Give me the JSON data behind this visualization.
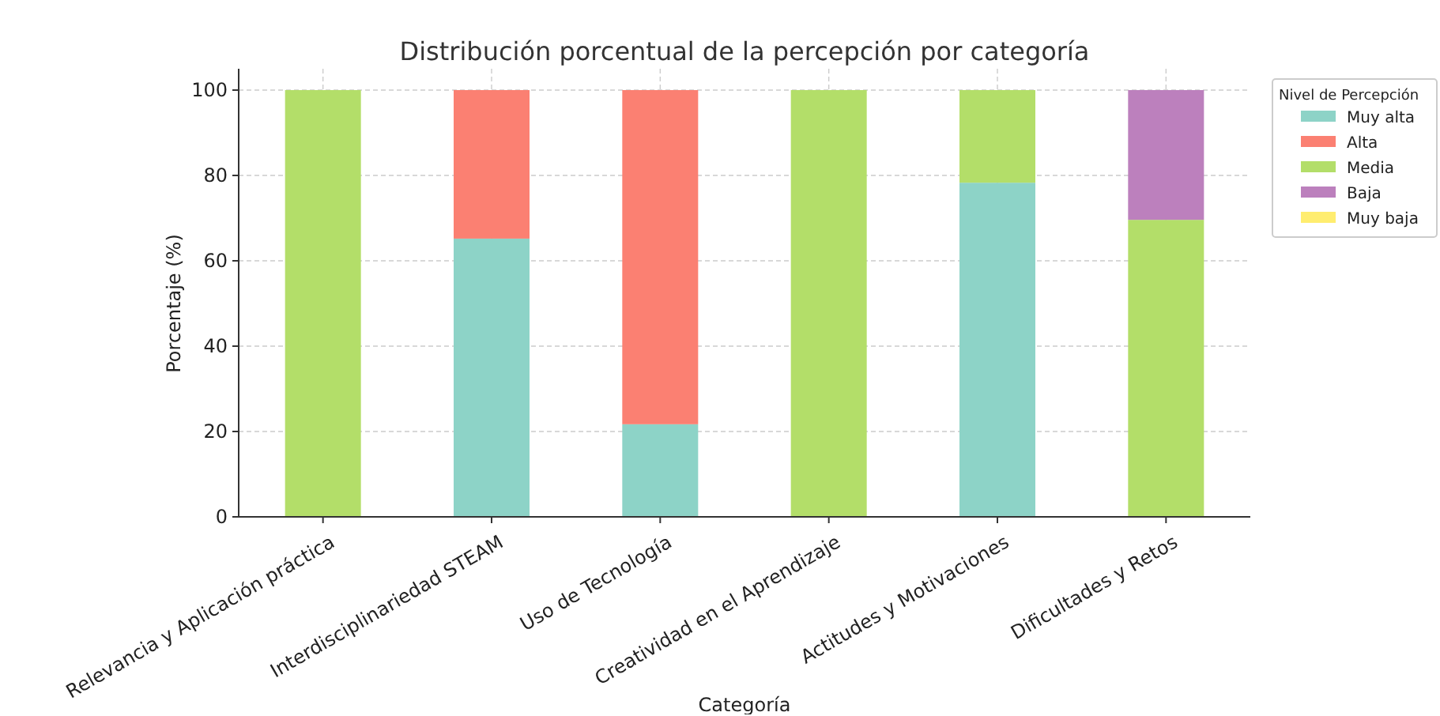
{
  "chart_data": {
    "type": "bar",
    "title": "Distribución porcentual de la percepción por categoría",
    "xlabel": "Categoría",
    "ylabel": "Porcentaje (%)",
    "legend_title": "Nivel de Percepción",
    "categories": [
      "Relevancia y Aplicación práctica",
      "Interdisciplinariedad STEAM",
      "Uso de Tecnología",
      "Creatividad en el Aprendizaje",
      "Actitudes y Motivaciones",
      "Dificultades y Retos"
    ],
    "stacked": true,
    "ylim": [
      0,
      105
    ],
    "yticks": [
      0,
      20,
      40,
      60,
      80,
      100
    ],
    "grid": true,
    "legend": "top right",
    "series": [
      {
        "name": "Muy alta",
        "color": "#8dd3c7",
        "values": [
          0,
          65.2,
          21.7,
          0,
          78.3,
          0
        ]
      },
      {
        "name": "Alta",
        "color": "#fb8072",
        "values": [
          0,
          34.8,
          78.3,
          0,
          0,
          0
        ]
      },
      {
        "name": "Media",
        "color": "#b3de69",
        "values": [
          100,
          0,
          0,
          100,
          21.7,
          69.6
        ]
      },
      {
        "name": "Baja",
        "color": "#bc80bd",
        "values": [
          0,
          0,
          0,
          0,
          0,
          30.4
        ]
      },
      {
        "name": "Muy baja",
        "color": "#ffed6f",
        "values": [
          0,
          0,
          0,
          0,
          0,
          0
        ]
      }
    ]
  }
}
